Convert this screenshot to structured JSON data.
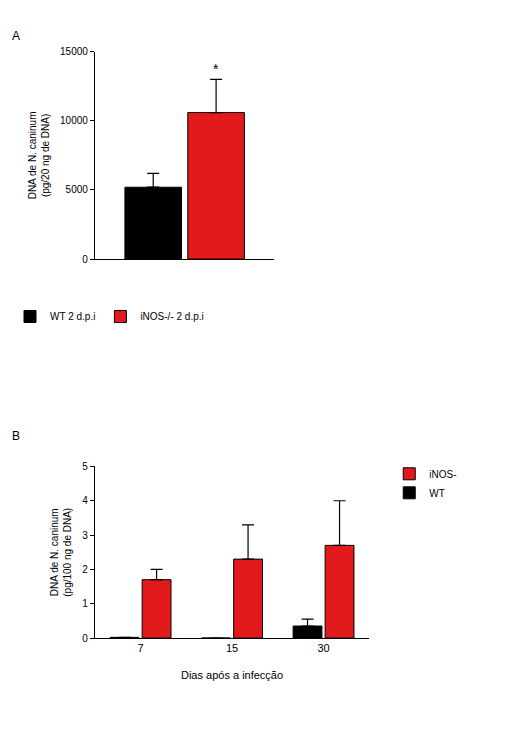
{
  "chart_data": [
    {
      "type": "bar",
      "title": "A",
      "y_label": "DNA de N. caninum (pg/20 ng de DNA)",
      "categories": [
        null
      ],
      "series": [
        {
          "name": "WT 2 d.p.i",
          "color": "#000000",
          "values": [
            5200
          ],
          "errors": [
            1000
          ]
        },
        {
          "name": "iNOS-/- 2 d.p.i",
          "color": "#e31a1c",
          "values": [
            10600
          ],
          "errors": [
            2400
          ]
        }
      ],
      "annotations": [
        {
          "series": "iNOS-/- 2 d.p.i",
          "category_index": 0,
          "text": "*"
        }
      ],
      "ylim": [
        0,
        15000
      ],
      "yticks": [
        0,
        5000,
        10000,
        15000
      ],
      "grid": false,
      "legend": "bottom",
      "tick_labels": "y"
    },
    {
      "type": "bar",
      "title": "B",
      "x_label": "Dias após a infecção",
      "y_label": "DNA de N. caninum (pg/100 ng de DNA)",
      "categories": [
        "7",
        "15",
        "30"
      ],
      "series": [
        {
          "name": "WT",
          "color": "#000000",
          "values": [
            0.02,
            0,
            0.35
          ],
          "errors": [
            0,
            0,
            0.2
          ]
        },
        {
          "name": "iNOS-",
          "color": "#e31a1c",
          "values": [
            1.7,
            2.3,
            2.7
          ],
          "errors": [
            0.3,
            1.0,
            1.3
          ]
        }
      ],
      "ylim": [
        0,
        5
      ],
      "yticks": [
        0,
        1,
        2,
        3,
        4,
        5
      ],
      "grid": false,
      "legend": "right"
    }
  ]
}
